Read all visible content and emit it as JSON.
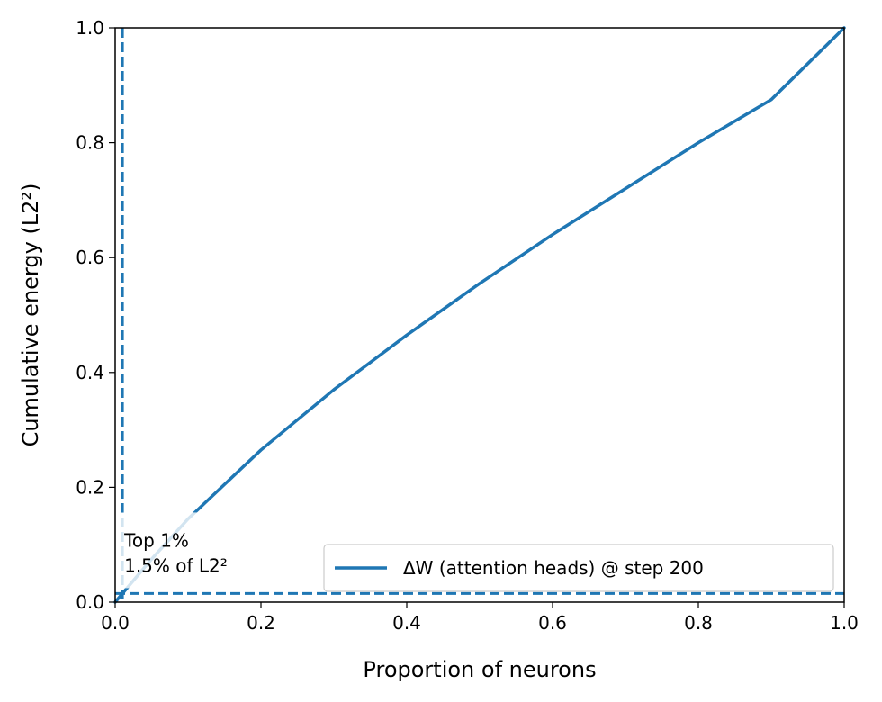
{
  "chart_data": {
    "type": "line",
    "title": "",
    "xlabel": "Proportion of neurons",
    "ylabel": "Cumulative energy (L2²)",
    "xlim": [
      0.0,
      1.0
    ],
    "ylim": [
      0.0,
      1.0
    ],
    "x_ticks": [
      "0.0",
      "0.2",
      "0.4",
      "0.6",
      "0.8",
      "1.0"
    ],
    "y_ticks": [
      "0.0",
      "0.2",
      "0.4",
      "0.6",
      "0.8",
      "1.0"
    ],
    "grid": false,
    "legend_position": "lower-right",
    "series": [
      {
        "name": "ΔW (attention heads) @ step 200",
        "color": "#1f77b4",
        "style": "solid",
        "x": [
          0.0,
          0.01,
          0.05,
          0.1,
          0.2,
          0.3,
          0.4,
          0.5,
          0.6,
          0.7,
          0.8,
          0.9,
          1.0
        ],
        "y": [
          0.0,
          0.015,
          0.075,
          0.145,
          0.265,
          0.37,
          0.465,
          0.555,
          0.64,
          0.72,
          0.8,
          0.875,
          1.0
        ]
      }
    ],
    "reference_lines": [
      {
        "orientation": "vertical",
        "x": 0.01,
        "color": "#1f77b4",
        "style": "dashed"
      },
      {
        "orientation": "horizontal",
        "y": 0.015,
        "color": "#1f77b4",
        "style": "dashed"
      }
    ],
    "annotation": {
      "lines": [
        "Top 1%",
        "1.5% of L2²"
      ],
      "x": 0.01,
      "y": 0.015
    }
  }
}
